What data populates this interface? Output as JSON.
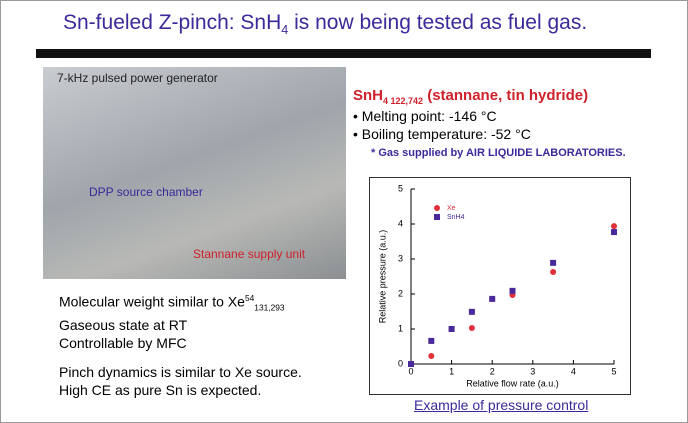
{
  "header": {
    "title_parts": [
      "Sn-fueled Z-pinch: SnH",
      "4",
      " is now being tested as fuel gas."
    ]
  },
  "photo": {
    "labels": [
      "7-kHz pulsed power generator",
      "DPP source chamber",
      "Stannane supply unit"
    ]
  },
  "stannane": {
    "formula": "SnH",
    "sub": "4 122,742",
    "name": "(stannane, tin hydride)",
    "bullets": [
      "Melting point: -146 °C",
      "Boiling temperature: -52 °C"
    ],
    "note": "* Gas supplied by AIR LIQUIDE LABORATORIES."
  },
  "notes": {
    "molecular": [
      "Molecular weight similar to Xe",
      "54",
      "131,293"
    ],
    "lines": [
      "Gaseous state at RT",
      "Controllable by MFC"
    ],
    "pinch": [
      "Pinch dynamics is similar to Xe source.",
      "High CE as pure Sn is expected."
    ]
  },
  "chart_data": {
    "type": "scatter",
    "caption": "Example of pressure control",
    "x_label": "Relative flow rate (a.u.)",
    "y_label": "Relative pressure (a.u.)",
    "x": [
      0,
      0.5,
      1,
      1.5,
      2,
      2.5,
      3.5,
      5
    ],
    "series": [
      {
        "name": "Xe",
        "color": "#e0303a",
        "values": [
          0,
          0.23,
          1.0,
          1.03,
          1.86,
          1.97,
          2.63,
          3.94
        ]
      },
      {
        "name": "SnH4",
        "color": "#4a2a9a",
        "values": [
          0,
          0.66,
          1.0,
          1.49,
          1.86,
          2.09,
          2.89,
          3.77
        ]
      }
    ],
    "xlim": [
      0,
      5
    ],
    "ylim": [
      0,
      5
    ],
    "xticks": [
      0,
      1,
      2,
      3,
      4,
      5
    ],
    "yticks": [
      0,
      1,
      2,
      3,
      4,
      5
    ]
  }
}
